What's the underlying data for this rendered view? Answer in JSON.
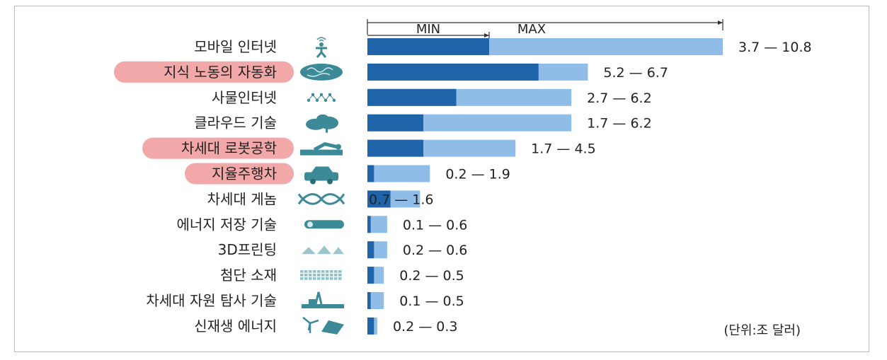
{
  "chart_data": {
    "type": "bar",
    "subtype": "range",
    "header": {
      "min_label": "MIN",
      "max_label": "MAX"
    },
    "unit_note": "(단위:조 달러)",
    "xlim": [
      0,
      10.8
    ],
    "colors": {
      "min": "#1f63a8",
      "max": "#8fbde8",
      "highlight": "#f2a7a8",
      "icon": "#3c8a97"
    },
    "categories": [
      {
        "label": "모바일 인터넷",
        "min": 3.7,
        "max": 10.8,
        "value_label": "3.7 — 10.8",
        "highlight": false,
        "icon": "person-signal-icon"
      },
      {
        "label": "지식 노동의 자동화",
        "min": 5.2,
        "max": 6.7,
        "value_label": "5.2 — 6.7",
        "highlight": true,
        "icon": "brain-icon"
      },
      {
        "label": "사물인터넷",
        "min": 2.7,
        "max": 6.2,
        "value_label": "2.7 — 6.2",
        "highlight": false,
        "icon": "network-icon"
      },
      {
        "label": "클라우드 기술",
        "min": 1.7,
        "max": 6.2,
        "value_label": "1.7 — 6.2",
        "highlight": false,
        "icon": "cloud-icon"
      },
      {
        "label": "차세대 로봇공학",
        "min": 1.7,
        "max": 4.5,
        "value_label": "1.7 — 4.5",
        "highlight": true,
        "icon": "robot-arm-icon"
      },
      {
        "label": "지율주행차",
        "min": 0.2,
        "max": 1.9,
        "value_label": "0.2 — 1.9",
        "highlight": true,
        "icon": "car-icon"
      },
      {
        "label": "차세대 게놈",
        "min": 0.7,
        "max": 1.6,
        "value_label": "0.7 — 1.6",
        "highlight": false,
        "icon": "dna-icon"
      },
      {
        "label": "에너지 저장 기술",
        "min": 0.1,
        "max": 0.6,
        "value_label": "0.1 — 0.6",
        "highlight": false,
        "icon": "battery-icon"
      },
      {
        "label": "3D프린팅",
        "min": 0.2,
        "max": 0.6,
        "value_label": "0.2 — 0.6",
        "highlight": false,
        "icon": "printer-3d-icon"
      },
      {
        "label": "첨단 소재",
        "min": 0.2,
        "max": 0.5,
        "value_label": "0.2 — 0.5",
        "highlight": false,
        "icon": "material-grid-icon"
      },
      {
        "label": "차세대 자원 탐사 기술",
        "min": 0.1,
        "max": 0.5,
        "value_label": "0.1 — 0.5",
        "highlight": false,
        "icon": "oil-rig-icon"
      },
      {
        "label": "신재생 에너지",
        "min": 0.2,
        "max": 0.3,
        "value_label": "0.2 — 0.3",
        "highlight": false,
        "icon": "wind-solar-icon"
      }
    ]
  }
}
